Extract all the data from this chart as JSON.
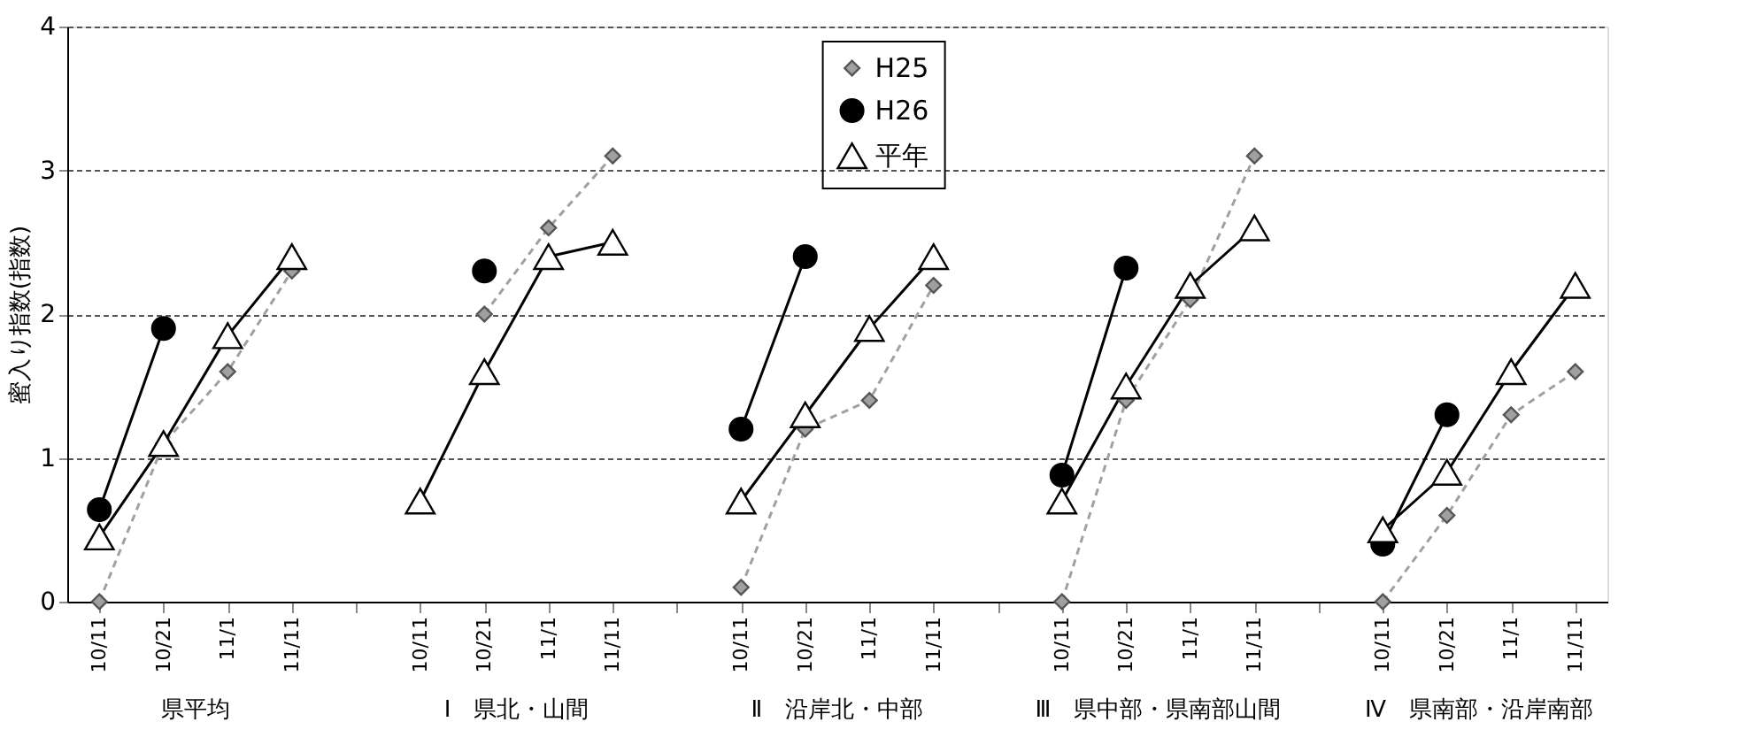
{
  "chart_data": {
    "type": "line",
    "ylabel": "蜜入り指数(指数)",
    "categories": [
      "10/11",
      "10/21",
      "11/1",
      "11/11",
      null,
      "10/11",
      "10/21",
      "11/1",
      "11/11",
      null,
      "10/11",
      "10/21",
      "11/1",
      "11/11",
      null,
      "10/11",
      "10/21",
      "11/1",
      "11/11",
      null,
      "10/11",
      "10/21",
      "11/1",
      "11/11"
    ],
    "series": [
      {
        "name": "H25",
        "color": "#a0a0a0",
        "marker": "diamond",
        "line_style": "dashed",
        "values": [
          0,
          1.1,
          1.6,
          2.3,
          null,
          null,
          2.0,
          2.6,
          3.1,
          null,
          0.1,
          1.2,
          1.4,
          2.2,
          null,
          0,
          1.4,
          2.1,
          3.1,
          null,
          0,
          0.6,
          1.3,
          1.6
        ]
      },
      {
        "name": "H26",
        "color": "#000000",
        "marker": "circle",
        "line_style": "solid",
        "values": [
          0.64,
          1.9,
          null,
          null,
          null,
          null,
          2.3,
          null,
          null,
          null,
          1.2,
          2.4,
          null,
          null,
          null,
          0.88,
          2.32,
          null,
          null,
          null,
          0.4,
          1.3,
          null,
          null
        ]
      },
      {
        "name": "平年",
        "color": "#000000",
        "marker": "triangle",
        "line_style": "solid",
        "values": [
          0.45,
          1.1,
          1.85,
          2.4,
          null,
          0.7,
          1.6,
          2.4,
          2.5,
          null,
          0.7,
          1.3,
          1.9,
          2.4,
          null,
          0.7,
          1.5,
          2.2,
          2.6,
          null,
          0.5,
          0.9,
          1.6,
          2.2
        ]
      }
    ],
    "annotations": [
      "県平均",
      "Ⅰ　県北・山間",
      "Ⅱ　沿岸北・中部",
      "Ⅲ　県中部・県南部山間",
      "Ⅳ　県南部・沿岸南部"
    ],
    "ylim": [
      0,
      4
    ],
    "yticks": [
      0,
      1,
      2,
      3,
      4
    ],
    "grid": "y",
    "legend": "top"
  }
}
